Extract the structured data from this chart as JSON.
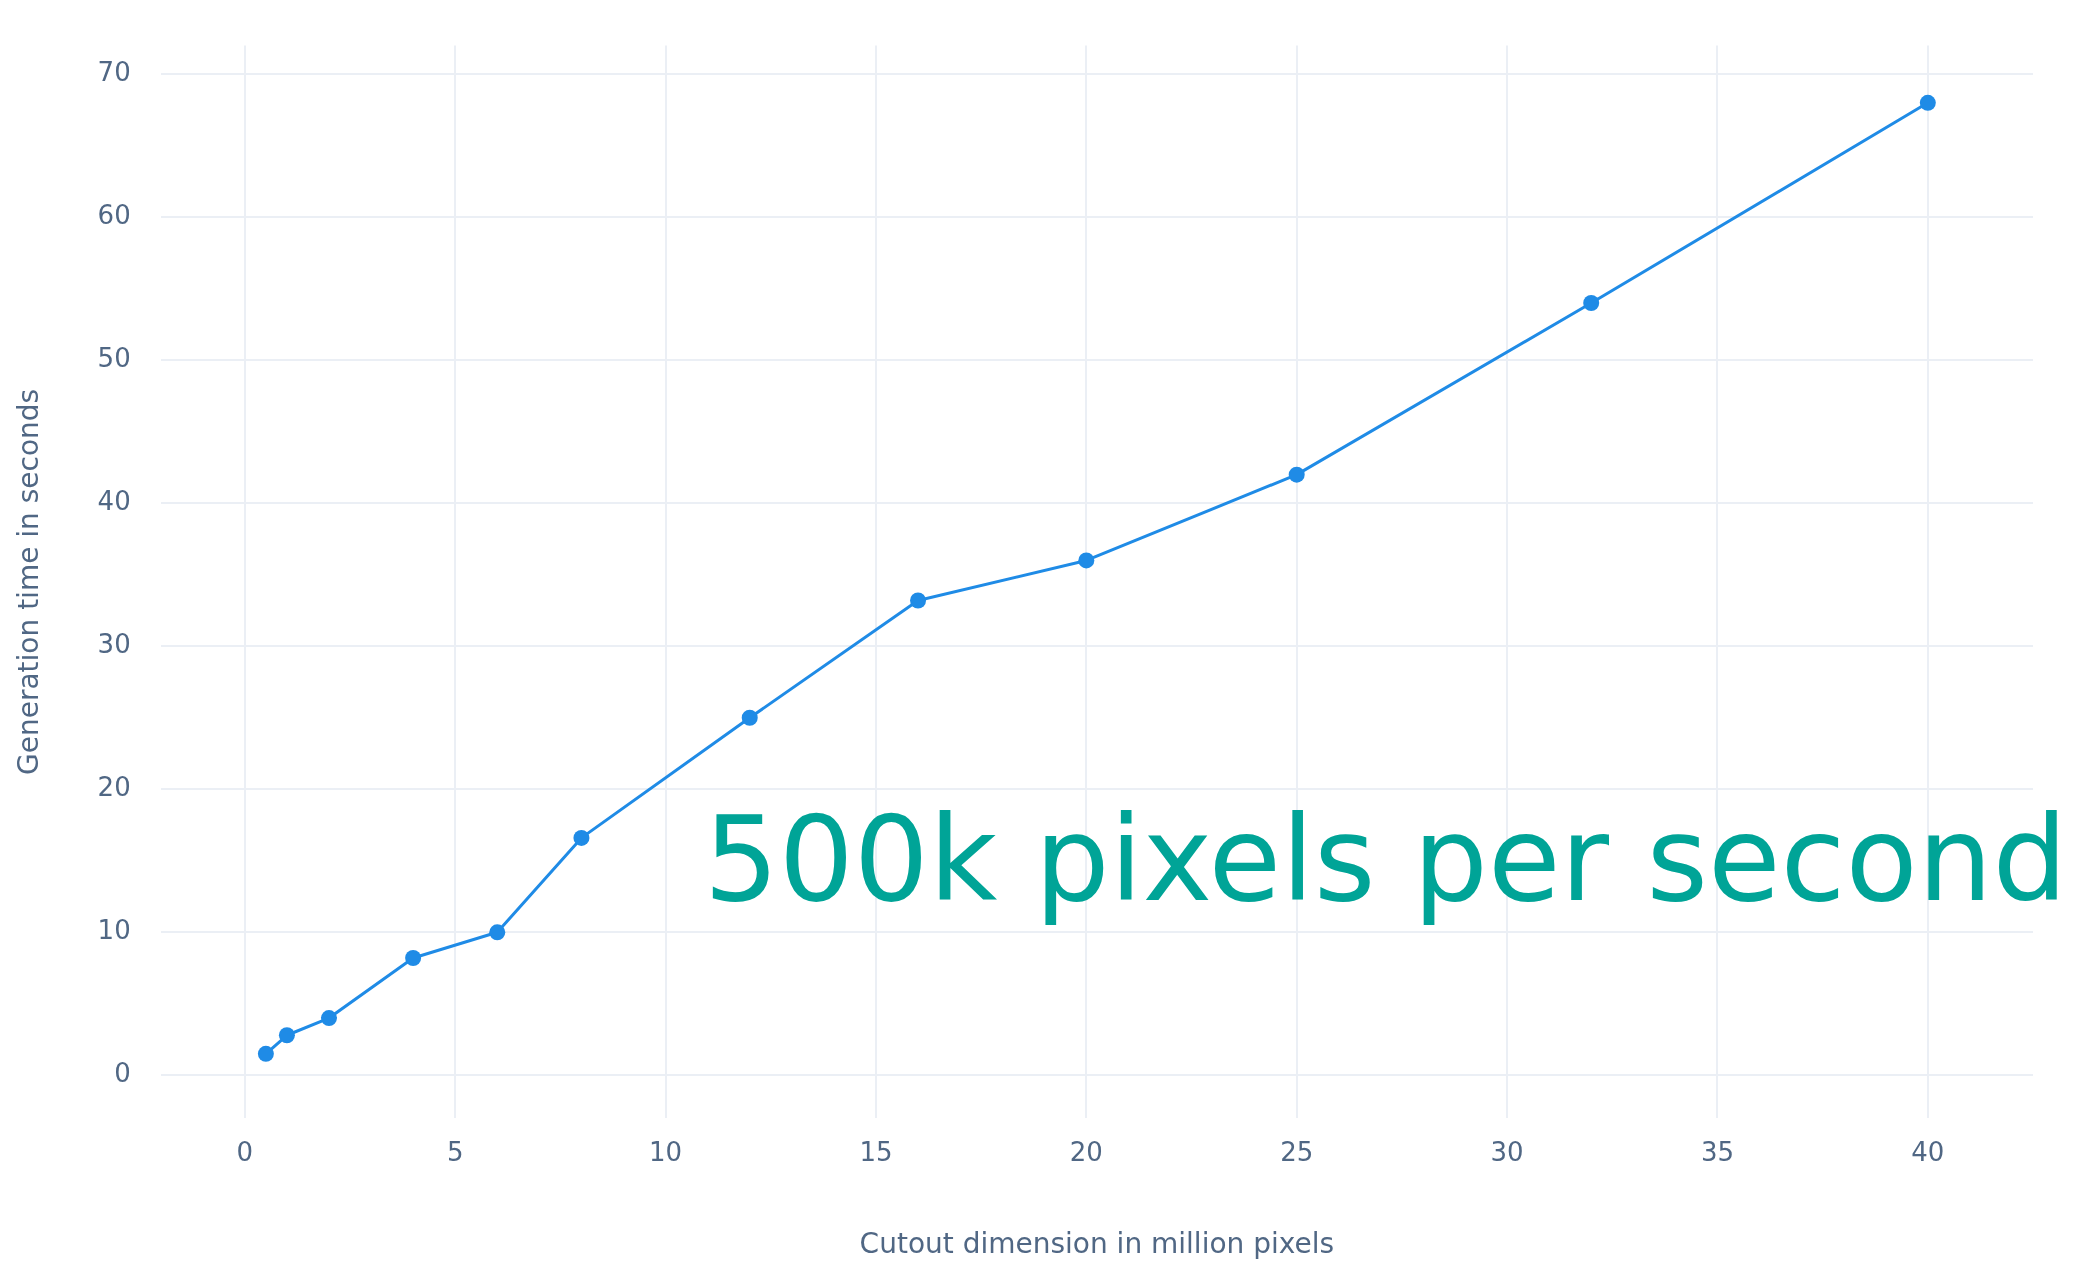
{
  "chart_data": {
    "type": "line",
    "xlabel": "Cutout dimension in million pixels",
    "ylabel": "Generation time in seconds",
    "x": [
      0.5,
      1,
      2,
      4,
      6,
      8,
      12,
      16,
      20,
      25,
      32,
      40
    ],
    "series": [
      {
        "color": "#1f8be6",
        "values": [
          1.5,
          2.8,
          4,
          8.2,
          10,
          16.6,
          25,
          33.2,
          36,
          42,
          54,
          68
        ]
      }
    ],
    "xlim": [
      -2,
      42.5
    ],
    "xticks": [
      0,
      5,
      10,
      15,
      20,
      25,
      30,
      35,
      40
    ],
    "ylim": [
      -3,
      72
    ],
    "yticks": [
      0,
      10,
      20,
      30,
      40,
      50,
      60,
      70
    ],
    "grid": true,
    "marker": "circle",
    "line_style": "solid",
    "legend": false,
    "annotations": [
      "500k pixels per second"
    ]
  }
}
